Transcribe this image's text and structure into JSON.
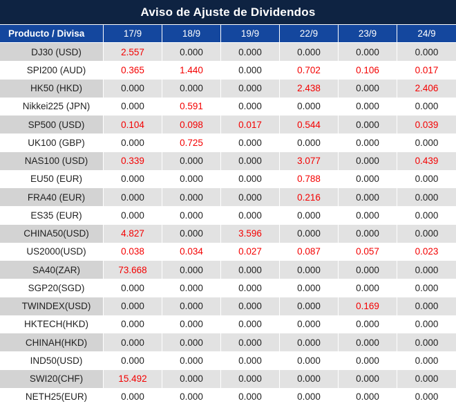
{
  "title": "Aviso de Ajuste de Dividendos",
  "table": {
    "product_column_header": "Producto / Divisa",
    "date_headers": [
      "17/9",
      "18/9",
      "19/9",
      "22/9",
      "23/9",
      "24/9"
    ],
    "rows": [
      {
        "product": "DJ30 (USD)",
        "values": [
          "2.557",
          "0.000",
          "0.000",
          "0.000",
          "0.000",
          "0.000"
        ]
      },
      {
        "product": "SPI200 (AUD)",
        "values": [
          "0.365",
          "1.440",
          "0.000",
          "0.702",
          "0.106",
          "0.017"
        ]
      },
      {
        "product": "HK50 (HKD)",
        "values": [
          "0.000",
          "0.000",
          "0.000",
          "2.438",
          "0.000",
          "2.406"
        ]
      },
      {
        "product": "Nikkei225 (JPN)",
        "values": [
          "0.000",
          "0.591",
          "0.000",
          "0.000",
          "0.000",
          "0.000"
        ]
      },
      {
        "product": "SP500 (USD)",
        "values": [
          "0.104",
          "0.098",
          "0.017",
          "0.544",
          "0.000",
          "0.039"
        ]
      },
      {
        "product": "UK100 (GBP)",
        "values": [
          "0.000",
          "0.725",
          "0.000",
          "0.000",
          "0.000",
          "0.000"
        ]
      },
      {
        "product": "NAS100 (USD)",
        "values": [
          "0.339",
          "0.000",
          "0.000",
          "3.077",
          "0.000",
          "0.439"
        ]
      },
      {
        "product": "EU50 (EUR)",
        "values": [
          "0.000",
          "0.000",
          "0.000",
          "0.788",
          "0.000",
          "0.000"
        ]
      },
      {
        "product": "FRA40 (EUR)",
        "values": [
          "0.000",
          "0.000",
          "0.000",
          "0.216",
          "0.000",
          "0.000"
        ]
      },
      {
        "product": "ES35 (EUR)",
        "values": [
          "0.000",
          "0.000",
          "0.000",
          "0.000",
          "0.000",
          "0.000"
        ]
      },
      {
        "product": "CHINA50(USD)",
        "values": [
          "4.827",
          "0.000",
          "3.596",
          "0.000",
          "0.000",
          "0.000"
        ]
      },
      {
        "product": "US2000(USD)",
        "values": [
          "0.038",
          "0.034",
          "0.027",
          "0.087",
          "0.057",
          "0.023"
        ]
      },
      {
        "product": "SA40(ZAR)",
        "values": [
          "73.668",
          "0.000",
          "0.000",
          "0.000",
          "0.000",
          "0.000"
        ]
      },
      {
        "product": "SGP20(SGD)",
        "values": [
          "0.000",
          "0.000",
          "0.000",
          "0.000",
          "0.000",
          "0.000"
        ]
      },
      {
        "product": "TWINDEX(USD)",
        "values": [
          "0.000",
          "0.000",
          "0.000",
          "0.000",
          "0.169",
          "0.000"
        ]
      },
      {
        "product": "HKTECH(HKD)",
        "values": [
          "0.000",
          "0.000",
          "0.000",
          "0.000",
          "0.000",
          "0.000"
        ]
      },
      {
        "product": "CHINAH(HKD)",
        "values": [
          "0.000",
          "0.000",
          "0.000",
          "0.000",
          "0.000",
          "0.000"
        ]
      },
      {
        "product": "IND50(USD)",
        "values": [
          "0.000",
          "0.000",
          "0.000",
          "0.000",
          "0.000",
          "0.000"
        ]
      },
      {
        "product": "SWI20(CHF)",
        "values": [
          "15.492",
          "0.000",
          "0.000",
          "0.000",
          "0.000",
          "0.000"
        ]
      },
      {
        "product": "NETH25(EUR)",
        "values": [
          "0.000",
          "0.000",
          "0.000",
          "0.000",
          "0.000",
          "0.000"
        ]
      }
    ]
  },
  "colors": {
    "title_bar_bg": "#0E2342",
    "header_row_bg": "#14479E",
    "header_text": "#FFFFFF",
    "zebra_row_bg": "#E2E2E2",
    "zebra_first_col_bg": "#D3D3D3",
    "white_row_bg": "#FFFFFF",
    "value_text": "#1F1F1F",
    "nonzero_value_text": "#F40000",
    "bottom_edge": "#ECECEC"
  }
}
